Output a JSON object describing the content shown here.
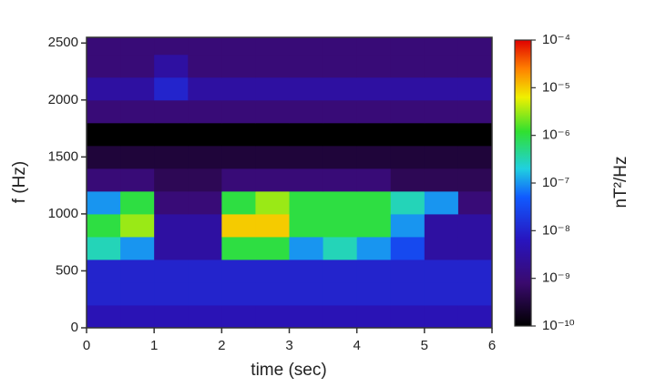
{
  "chart_data": {
    "type": "spectrogram",
    "xlabel": "time (sec)",
    "ylabel": "f (Hz)",
    "colorbar_label": "nT²/Hz",
    "xlim": [
      0,
      6
    ],
    "xticks": [
      0,
      1,
      2,
      3,
      4,
      5,
      6
    ],
    "ylim": [
      0,
      2550
    ],
    "yticks": [
      0,
      500,
      1000,
      1500,
      2000,
      2500
    ],
    "clim": [
      1e-10,
      0.0001
    ],
    "color_scale": "log",
    "colormap": "jet-dark",
    "cticks": [
      {
        "value": 1e-10,
        "label": "10⁻¹⁰"
      },
      {
        "value": 1e-09,
        "label": "10⁻⁹"
      },
      {
        "value": 1e-08,
        "label": "10⁻⁸"
      },
      {
        "value": 1e-07,
        "label": "10⁻⁷"
      },
      {
        "value": 1e-06,
        "label": "10⁻⁶"
      },
      {
        "value": 1e-05,
        "label": "10⁻⁵"
      },
      {
        "value": 0.0001,
        "label": "10⁻⁴"
      }
    ],
    "x_bins": [
      0,
      0.5,
      1,
      1.5,
      2,
      2.5,
      3,
      3.5,
      4,
      4.5,
      5,
      5.5,
      6
    ],
    "y_bins": [
      0,
      200,
      400,
      600,
      800,
      1000,
      1200,
      1400,
      1600,
      1800,
      2000,
      2200,
      2400,
      2550
    ],
    "values": [
      [
        5e-09,
        5e-09,
        5e-09,
        5e-09,
        5e-09,
        5e-09,
        5e-09,
        5e-09,
        5e-09,
        5e-09,
        5e-09,
        5e-09
      ],
      [
        1e-08,
        1e-08,
        1e-08,
        1e-08,
        1e-08,
        1e-08,
        1e-08,
        1e-08,
        1e-08,
        1e-08,
        1e-08,
        1e-08
      ],
      [
        1e-08,
        1e-08,
        1e-08,
        1e-08,
        1e-08,
        1e-08,
        1e-08,
        1e-08,
        1e-08,
        1e-08,
        1e-08,
        1e-08
      ],
      [
        3e-07,
        1e-07,
        3e-09,
        3e-09,
        1e-06,
        1e-06,
        1e-07,
        3e-07,
        1e-07,
        3e-08,
        3e-09,
        3e-09
      ],
      [
        1e-06,
        3e-06,
        3e-09,
        3e-09,
        1e-05,
        1e-05,
        1e-06,
        1e-06,
        1e-06,
        1e-07,
        3e-09,
        3e-09
      ],
      [
        1e-07,
        1e-06,
        1e-09,
        1e-09,
        1e-06,
        3e-06,
        1e-06,
        1e-06,
        1e-06,
        3e-07,
        1e-07,
        1e-09
      ],
      [
        1e-09,
        1e-09,
        5e-10,
        5e-10,
        1e-09,
        1e-09,
        1e-09,
        1e-09,
        1e-09,
        5e-10,
        5e-10,
        5e-10
      ],
      [
        3e-10,
        3e-10,
        3e-10,
        3e-10,
        3e-10,
        3e-10,
        3e-10,
        3e-10,
        3e-10,
        3e-10,
        3e-10,
        3e-10
      ],
      [
        1e-10,
        1e-10,
        1e-10,
        1e-10,
        1e-10,
        1e-10,
        1e-10,
        1e-10,
        1e-10,
        1e-10,
        1e-10,
        1e-10
      ],
      [
        1e-09,
        1e-09,
        1e-09,
        1e-09,
        1e-09,
        1e-09,
        1e-09,
        1e-09,
        1e-09,
        1e-09,
        1e-09,
        1e-09
      ],
      [
        3e-09,
        3e-09,
        1e-08,
        3e-09,
        3e-09,
        3e-09,
        3e-09,
        3e-09,
        3e-09,
        3e-09,
        3e-09,
        3e-09
      ],
      [
        1e-09,
        1e-09,
        3e-09,
        1e-09,
        1e-09,
        1e-09,
        1e-09,
        1e-09,
        1e-09,
        1e-09,
        1e-09,
        1e-09
      ],
      [
        1e-09,
        1e-09,
        1e-09,
        1e-09,
        1e-09,
        1e-09,
        1e-09,
        1e-09,
        1e-09,
        1e-09,
        1e-09,
        1e-09
      ]
    ]
  }
}
